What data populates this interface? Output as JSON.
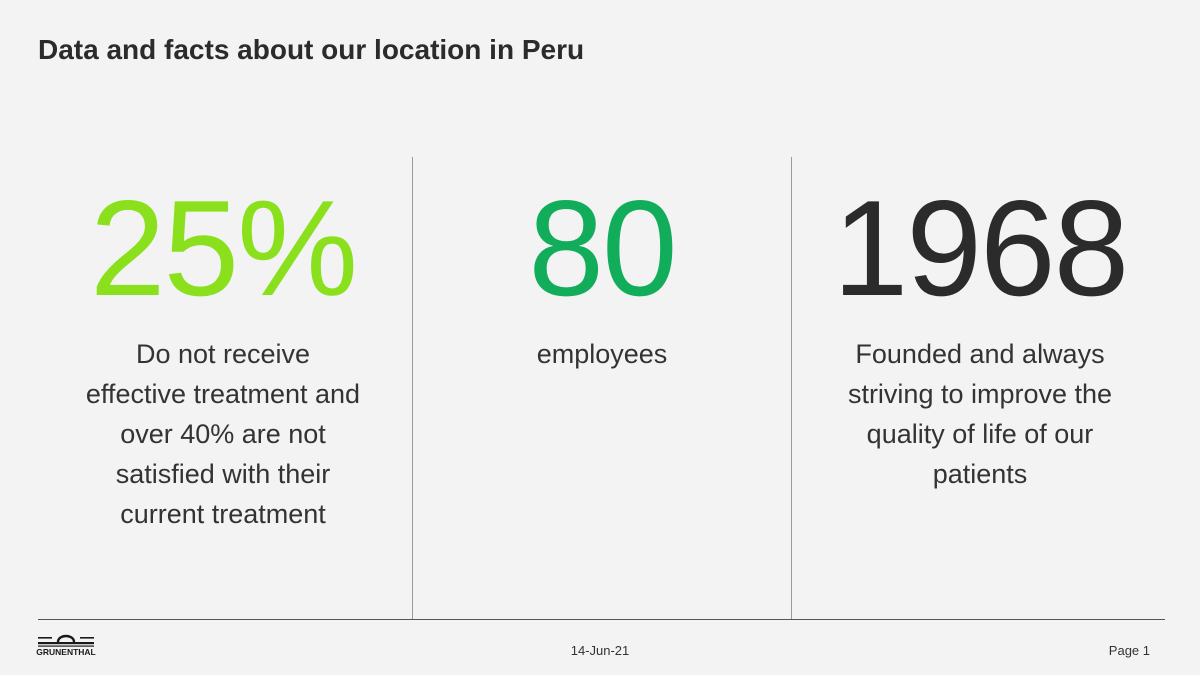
{
  "slide": {
    "title": "Data and facts about our location in Peru"
  },
  "stats": [
    {
      "value": "25%",
      "description_lines": [
        "Do not receive",
        "effective treatment and",
        "over 40% are not",
        "satisfied with their",
        "current treatment"
      ],
      "color": "#8be01e"
    },
    {
      "value": "80",
      "description_lines": [
        "employees"
      ],
      "color": "#12ad5b"
    },
    {
      "value": "1968",
      "description_lines": [
        "Founded and always",
        "striving to improve the",
        "quality of life of our",
        "patients"
      ],
      "color": "#2b2b2b"
    }
  ],
  "footer": {
    "logo_text": "GRUNENTHAL",
    "date": "14-Jun-21",
    "page": "Page 1"
  }
}
